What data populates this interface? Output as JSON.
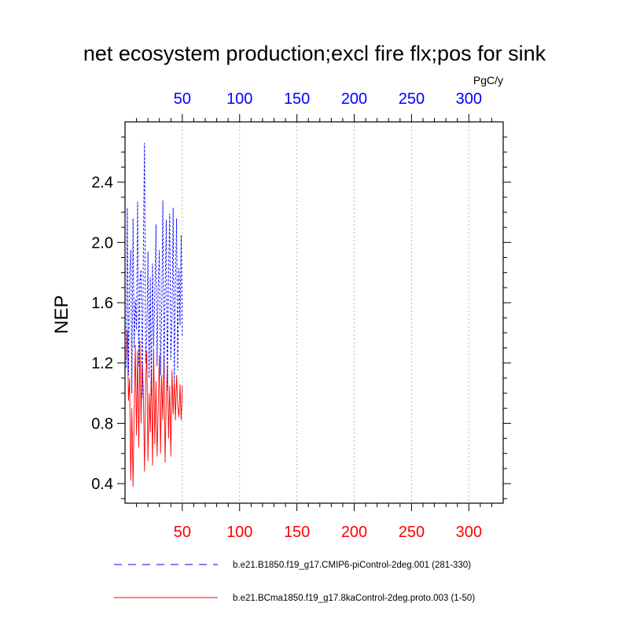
{
  "chart_data": {
    "type": "line",
    "title": "net ecosystem production;excl fire flx;pos for sink",
    "ylabel": "NEP",
    "units": "PgC/y",
    "xlim": [
      0,
      330
    ],
    "ylim": [
      0.27,
      2.8
    ],
    "grid": {
      "x": true,
      "y": false
    },
    "x_ticks": [
      50,
      100,
      150,
      200,
      250,
      300
    ],
    "y_ticks": [
      0.4,
      0.8,
      1.2,
      1.6,
      2.0,
      2.4
    ],
    "y_tick_labels": [
      "0.4",
      "0.8",
      "1.2",
      "1.6",
      "2.0",
      "2.4"
    ],
    "top_axis_color": "#0000ff",
    "bottom_axis_color": "#ff0000",
    "legend_position": "bottom",
    "series": [
      {
        "name": "b.e21.B1850.f19_g17.CMIP6-piControl-2deg.001 (281-330)",
        "color": "#0000ff",
        "style": "dashed",
        "x": [
          1,
          2,
          3,
          4,
          5,
          6,
          7,
          8,
          9,
          10,
          11,
          12,
          13,
          14,
          15,
          16,
          17,
          18,
          19,
          20,
          21,
          22,
          23,
          24,
          25,
          26,
          27,
          28,
          29,
          30,
          31,
          32,
          33,
          34,
          35,
          36,
          37,
          38,
          39,
          40,
          41,
          42,
          43,
          44,
          45,
          46,
          47,
          48,
          49,
          50
        ],
        "values": [
          1.17,
          2.23,
          1.12,
          1.78,
          1.95,
          1.0,
          2.16,
          1.3,
          1.62,
          1.42,
          2.27,
          1.18,
          1.74,
          1.82,
          0.97,
          1.93,
          2.66,
          1.2,
          1.38,
          1.94,
          1.1,
          1.77,
          0.98,
          1.86,
          1.31,
          1.67,
          2.12,
          1.18,
          1.72,
          1.95,
          1.12,
          1.55,
          2.28,
          1.1,
          1.68,
          2.15,
          1.02,
          1.8,
          2.19,
          1.22,
          1.5,
          2.23,
          1.08,
          1.72,
          2.16,
          1.15,
          1.83,
          1.45,
          2.05,
          1.38
        ]
      },
      {
        "name": "b.e21.BCma1850.f19_g17.8kaControl-2deg.proto.003 (1-50)",
        "color": "#ff0000",
        "style": "solid",
        "x": [
          1,
          2,
          3,
          4,
          5,
          6,
          7,
          8,
          9,
          10,
          11,
          12,
          13,
          14,
          15,
          16,
          17,
          18,
          19,
          20,
          21,
          22,
          23,
          24,
          25,
          26,
          27,
          28,
          29,
          30,
          31,
          32,
          33,
          34,
          35,
          36,
          37,
          38,
          39,
          40,
          41,
          42,
          43,
          44,
          45,
          46,
          47,
          48,
          49,
          50
        ],
        "values": [
          1.22,
          1.42,
          0.95,
          1.1,
          0.42,
          0.9,
          0.38,
          0.88,
          1.32,
          0.72,
          1.28,
          0.64,
          1.35,
          0.8,
          1.2,
          1.02,
          0.48,
          1.06,
          1.28,
          0.55,
          1.0,
          0.74,
          1.16,
          0.52,
          1.3,
          0.66,
          1.08,
          0.58,
          0.92,
          1.25,
          0.6,
          1.12,
          0.82,
          1.24,
          0.54,
          0.98,
          1.18,
          0.7,
          1.05,
          0.58,
          1.15,
          0.86,
          1.08,
          0.82,
          1.12,
          0.92,
          0.84,
          1.06,
          0.82,
          1.05
        ]
      }
    ]
  }
}
